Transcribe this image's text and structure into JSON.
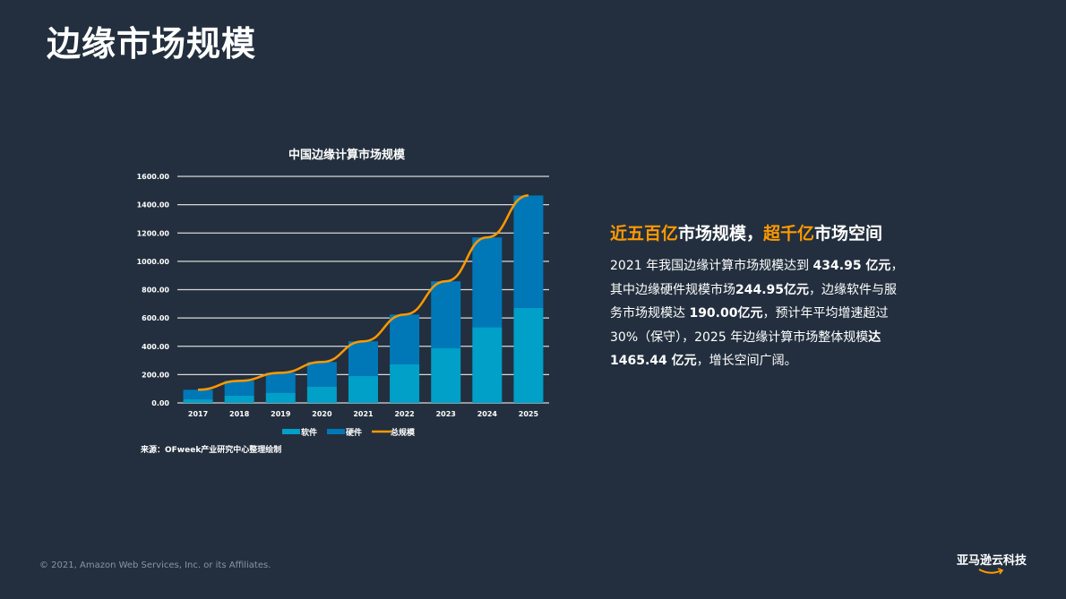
{
  "page": {
    "title": "边缘市场规模"
  },
  "chart_data": {
    "type": "bar",
    "stacked": true,
    "title": "中国边缘计算市场规模",
    "categories": [
      "2017",
      "2018",
      "2019",
      "2020",
      "2021",
      "2022",
      "2023",
      "2024",
      "2025"
    ],
    "series": [
      {
        "name": "软件",
        "type": "bar",
        "color": "#00a0c8",
        "values": [
          25,
          51,
          72,
          116,
          190,
          272,
          388,
          534,
          671
        ]
      },
      {
        "name": "硬件",
        "type": "bar",
        "color": "#0078b8",
        "values": [
          68,
          105,
          141,
          173,
          244.95,
          352,
          471,
          635,
          794
        ]
      },
      {
        "name": "总规模",
        "type": "line",
        "color": "#ff9900",
        "values": [
          93,
          156,
          213,
          289,
          434.95,
          624,
          859,
          1169,
          1465.44
        ]
      }
    ],
    "ylim": [
      0,
      1600
    ],
    "yticks": [
      "0.00",
      "200.00",
      "400.00",
      "600.00",
      "800.00",
      "1000.00",
      "1200.00",
      "1400.00",
      "1600.00"
    ],
    "grid": true,
    "legend": "bottom",
    "source": "来源：OFweek产业研究中心整理绘制"
  },
  "summary": {
    "headline_parts": [
      "近五百亿",
      "市场规模，",
      "超千亿",
      "市场空间"
    ],
    "lines": [
      [
        "2021 年我国边缘计算市场规模达到 ",
        "434.95 亿元",
        "，"
      ],
      [
        "其中边缘硬件规模市场",
        "244.95亿元",
        "，边缘软件与服"
      ],
      [
        "务市场规模达 ",
        "190.00亿元",
        "，预计年平均增速超过"
      ],
      [
        "30%（保守），2025 年边缘计算市场整体规模",
        "达",
        ""
      ],
      [
        "",
        "1465.44 亿元",
        "，增长空间广阔。"
      ]
    ]
  },
  "footer": {
    "copyright": "© 2021, Amazon Web Services, Inc. or its Affiliates.",
    "logo_text": "亚马逊云科技"
  }
}
